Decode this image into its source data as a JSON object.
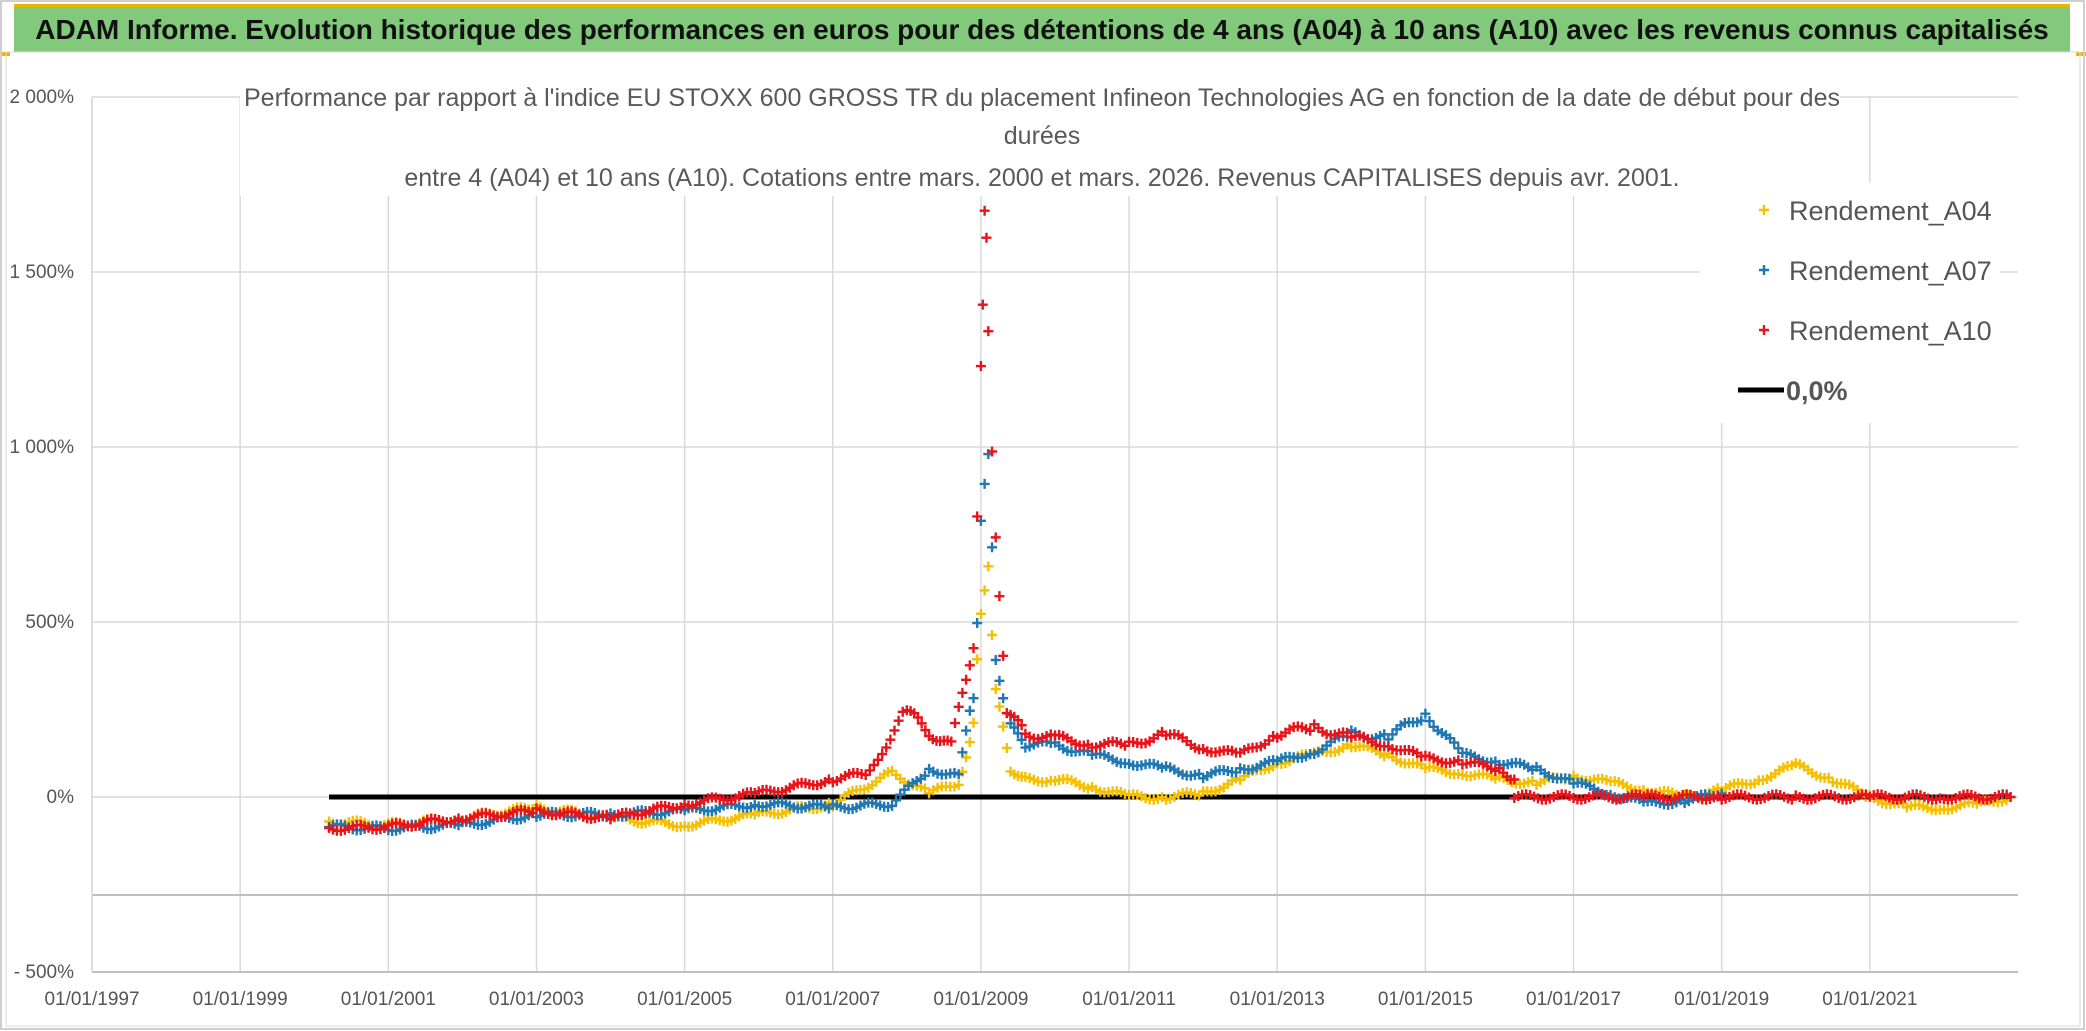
{
  "banner": {
    "title": "ADAM Informe. Evolution historique des performances en euros pour des détentions de 4 ans (A04) à 10 ans (A10) avec les revenus connus capitalisés"
  },
  "colors": {
    "banner_bg": "#82c97c",
    "accent": "#e8b800",
    "a04": "#f5c000",
    "a07": "#1f78b4",
    "a10": "#e8141b",
    "zero": "#000000"
  },
  "chart_data": {
    "type": "scatter",
    "title_lines": [
      "Performance par rapport à l'indice EU STOXX 600 GROSS TR  du placement Infineon Technologies AG en fonction de la date de début pour des",
      "durées",
      "entre 4 (A04) et 10 ans (A10). Cotations entre mars. 2000 et mars. 2026. Revenus CAPITALISES depuis avr. 2001."
    ],
    "ylim": [
      -500,
      2000
    ],
    "yticks": [
      -500,
      0,
      500,
      1000,
      1500,
      2000
    ],
    "ytick_labels": [
      "- 500%",
      "0%",
      "500%",
      "1 000%",
      "1 500%",
      "2 000%"
    ],
    "xlim": [
      1997.0,
      2023.0
    ],
    "xticks": [
      1997,
      1999,
      2001,
      2003,
      2005,
      2007,
      2009,
      2011,
      2013,
      2015,
      2017,
      2019,
      2021
    ],
    "xtick_labels": [
      "01/01/1997",
      "01/01/1999",
      "01/01/2001",
      "01/01/2003",
      "01/01/2005",
      "01/01/2007",
      "01/01/2009",
      "01/01/2011",
      "01/01/2013",
      "01/01/2015",
      "01/01/2017",
      "01/01/2019",
      "01/01/2021"
    ],
    "legend": {
      "placement": "top-right",
      "entries": [
        "Rendement_A04",
        "Rendement_A07",
        "Rendement_A10",
        "0,0%"
      ]
    },
    "series": [
      {
        "name": "Rendement_A04",
        "x": [
          2000.2,
          2001.0,
          2002.0,
          2003.0,
          2004.0,
          2005.0,
          2006.0,
          2007.0,
          2007.8,
          2008.3,
          2008.7,
          2008.9,
          2009.0,
          2009.1,
          2009.2,
          2009.4,
          2009.6,
          2010.0,
          2010.5,
          2011.0,
          2011.5,
          2012.0,
          2012.5,
          2013.0,
          2013.5,
          2014.0,
          2014.5,
          2015.0,
          2015.5,
          2016.0,
          2016.5,
          2017.0,
          2017.5,
          2018.0,
          2018.5,
          2019.0,
          2019.5,
          2020.0,
          2020.5,
          2021.0,
          2021.5,
          2022.0,
          2022.5,
          2022.9
        ],
        "y": [
          -70,
          -80,
          -60,
          -30,
          -60,
          -80,
          -50,
          -20,
          70,
          10,
          40,
          200,
          550,
          650,
          300,
          80,
          50,
          50,
          30,
          0,
          0,
          10,
          50,
          100,
          120,
          150,
          120,
          80,
          70,
          50,
          40,
          60,
          40,
          20,
          0,
          20,
          50,
          90,
          50,
          0,
          -30,
          -30,
          -20,
          0
        ]
      },
      {
        "name": "Rendement_A07",
        "x": [
          2000.2,
          2001.0,
          2002.0,
          2003.0,
          2004.0,
          2005.0,
          2006.0,
          2007.0,
          2007.8,
          2008.3,
          2008.7,
          2008.9,
          2009.0,
          2009.1,
          2009.2,
          2009.4,
          2009.6,
          2010.0,
          2010.5,
          2011.0,
          2011.5,
          2012.0,
          2012.5,
          2013.0,
          2013.5,
          2014.0,
          2014.5,
          2015.0,
          2015.5,
          2016.0,
          2016.5,
          2017.0,
          2017.5,
          2018.0,
          2018.5,
          2019.0
        ],
        "y": [
          -85,
          -90,
          -80,
          -50,
          -50,
          -40,
          -20,
          -30,
          -20,
          80,
          60,
          300,
          750,
          1000,
          400,
          200,
          150,
          150,
          120,
          100,
          80,
          60,
          80,
          100,
          130,
          180,
          170,
          240,
          120,
          100,
          80,
          40,
          10,
          -20,
          -10,
          10
        ]
      },
      {
        "name": "Rendement_A10",
        "x": [
          2000.2,
          2001.0,
          2002.0,
          2003.0,
          2004.0,
          2005.0,
          2006.0,
          2007.0,
          2007.5,
          2008.0,
          2008.3,
          2008.6,
          2008.9,
          2009.0,
          2009.05,
          2009.1,
          2009.2,
          2009.35,
          2009.6,
          2010.0,
          2010.5,
          2011.0,
          2011.5,
          2012.0,
          2012.5,
          2013.0,
          2013.5,
          2014.0,
          2014.5,
          2015.0,
          2015.5,
          2016.0,
          2016.2
        ],
        "y": [
          -90,
          -85,
          -60,
          -40,
          -60,
          -20,
          10,
          50,
          70,
          250,
          180,
          150,
          450,
          1200,
          1650,
          1400,
          700,
          250,
          180,
          170,
          150,
          150,
          180,
          140,
          120,
          180,
          200,
          170,
          150,
          110,
          100,
          80,
          50
        ]
      },
      {
        "name": "Rendement_A10",
        "x": [
          2016.2,
          2017.0,
          2018.0,
          2019.0,
          2020.0,
          2021.0,
          2022.0,
          2022.9
        ],
        "y": [
          0,
          0,
          0,
          0,
          0,
          0,
          0,
          0
        ]
      }
    ],
    "zero_line": {
      "name": "0,0%",
      "x": [
        2000.2,
        2022.9
      ],
      "y": [
        0,
        0
      ]
    }
  }
}
